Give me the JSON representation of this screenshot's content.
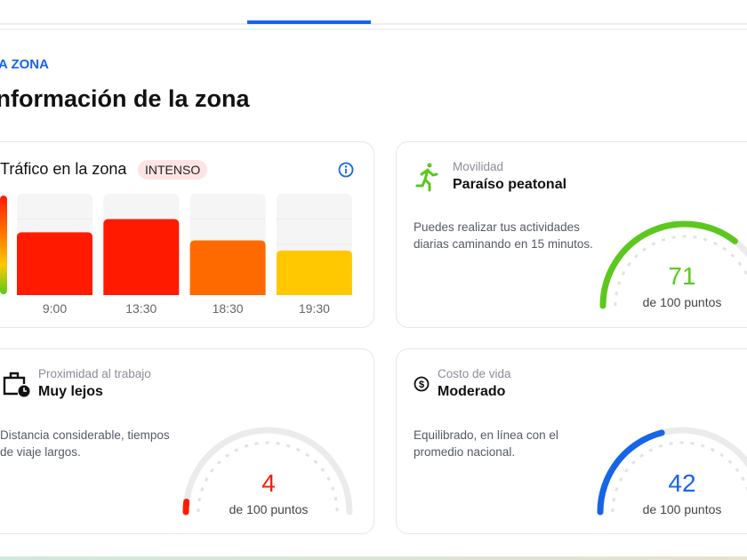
{
  "eyebrow": "A ZONA",
  "title": "Información de la zona",
  "traffic": {
    "title": "Tráfico en la zona",
    "badge": "INTENSO",
    "info_icon": "info-icon",
    "chart_data": {
      "type": "bar",
      "categories": [
        "9:00",
        "13:30",
        "18:30",
        "19:30"
      ],
      "values": [
        62,
        75,
        54,
        44
      ],
      "colors": [
        "#ff1a00",
        "#ff1a00",
        "#ff6a00",
        "#ffc800"
      ],
      "ylim": [
        0,
        100
      ]
    }
  },
  "mobility": {
    "label": "Movilidad",
    "heading": "Paraíso peatonal",
    "description": [
      "Puedes realizar tus actividades",
      "diarias caminando en 15 minutos."
    ],
    "score": "71",
    "score_value": 71,
    "of": "de 100 puntos",
    "color": "#5cc81e",
    "icon": "walking-person-icon"
  },
  "work": {
    "label": "Proximidad al trabajo",
    "heading": "Muy lejos",
    "description": [
      "Distancia considerable, tiempos",
      "de viaje largos."
    ],
    "score": "4",
    "score_value": 4,
    "of": "de 100 puntos",
    "color": "#ff1a00",
    "icon": "briefcase-clock-icon"
  },
  "cost": {
    "label": "Costo de vida",
    "heading": "Moderado",
    "description": [
      "Equilibrado, en línea con el",
      "promedio nacional."
    ],
    "score": "42",
    "score_value": 42,
    "of": "de 100 puntos",
    "color": "#1565e8",
    "icon": "dollar-coin-icon"
  }
}
